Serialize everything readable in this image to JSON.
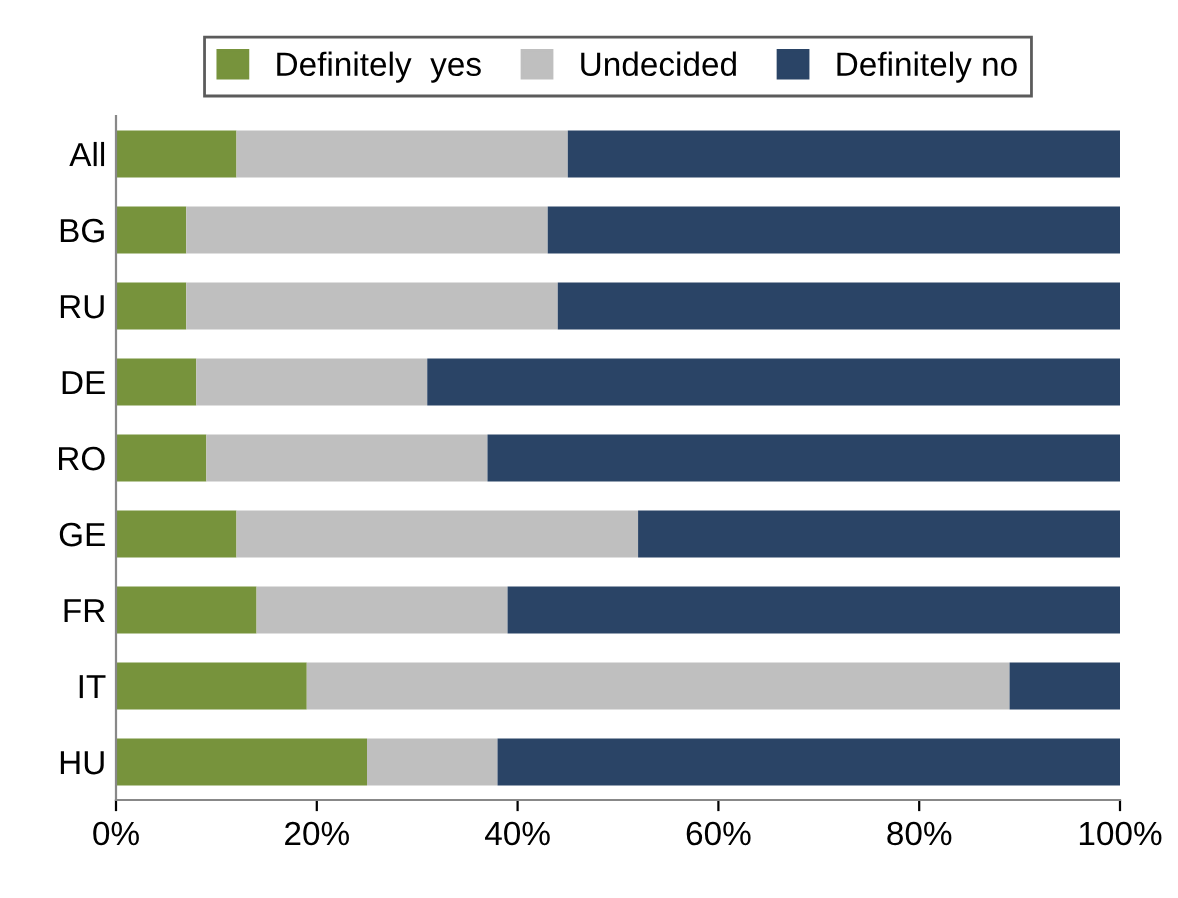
{
  "chart_data": {
    "type": "bar",
    "orientation": "horizontal",
    "stacked": true,
    "categories": [
      "All",
      "BG",
      "RU",
      "DE",
      "RO",
      "GE",
      "FR",
      "IT",
      "HU"
    ],
    "series": [
      {
        "name": "Definitely  yes",
        "color": "#77933c",
        "values": [
          12,
          7,
          7,
          8,
          9,
          12,
          14,
          19,
          25
        ]
      },
      {
        "name": "Undecided",
        "color": "#bfbfbf",
        "values": [
          33,
          36,
          37,
          23,
          28,
          40,
          25,
          70,
          13
        ]
      },
      {
        "name": "Definitely no",
        "color": "#2a4466",
        "values": [
          55,
          57,
          56,
          69,
          63,
          48,
          61,
          11,
          62
        ]
      }
    ],
    "xlim": [
      0,
      100
    ],
    "xticks": [
      {
        "value": 0,
        "label": "0%"
      },
      {
        "value": 20,
        "label": "20%"
      },
      {
        "value": 40,
        "label": "40%"
      },
      {
        "value": 60,
        "label": "60%"
      },
      {
        "value": 80,
        "label": "80%"
      },
      {
        "value": 100,
        "label": "100%"
      }
    ],
    "grid": false,
    "legend": "top"
  }
}
